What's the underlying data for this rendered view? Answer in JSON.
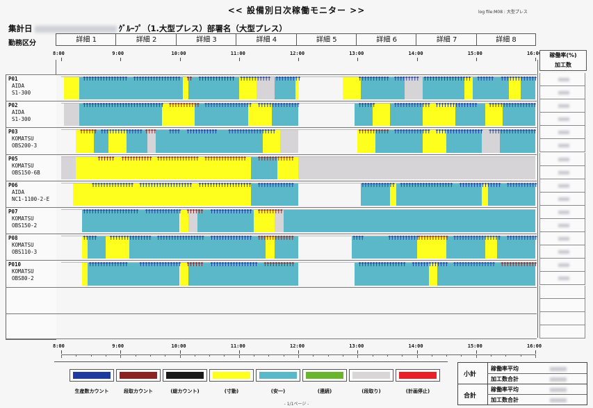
{
  "header": {
    "title": "<< 設備別日次稼働モニター >>",
    "log_file": "log file:M08 : 大型プレス",
    "aggregate_prefix": "集計日",
    "aggregate_suffix": "ｸﾞﾙｰﾌﾟ（1.大型プレス）部署名（大型プレス）",
    "shift_label": "勤務区分"
  },
  "details": [
    "詳細 1",
    "詳細 2",
    "詳細 3",
    "詳細 4",
    "詳細 5",
    "詳細 6",
    "詳細 7",
    "詳細 8"
  ],
  "time_ticks": [
    "8:00",
    "9:00",
    "10:00",
    "11:00",
    "12:00",
    "13:00",
    "14:00",
    "15:00",
    "16:00"
  ],
  "right_headers": {
    "rate": "稼働率(%)",
    "count": "加工数"
  },
  "machines": [
    {
      "id": "P01",
      "maker": "AIDA",
      "model": "S1-300"
    },
    {
      "id": "P02",
      "maker": "AIDA",
      "model": "S1-300"
    },
    {
      "id": "P03",
      "maker": "KOMATSU",
      "model": "OBS200-3"
    },
    {
      "id": "P05",
      "maker": "KOMATSU",
      "model": "OBS150-6B"
    },
    {
      "id": "P06",
      "maker": "AIDA",
      "model": "NC1-1100-2-E"
    },
    {
      "id": "P07",
      "maker": "KOMATSU",
      "model": "OBS150-2"
    },
    {
      "id": "P08",
      "maker": "KOMATSU",
      "model": "OBS110-3"
    },
    {
      "id": "P010",
      "maker": "KOMATSU",
      "model": "OBS80-2"
    }
  ],
  "legend": [
    {
      "label": "生産数カウント",
      "color": "#1f3a9e"
    },
    {
      "label": "段取カウント",
      "color": "#8b2323"
    },
    {
      "label": "(総カウント)",
      "color": "#1a1a1a"
    },
    {
      "label": "(寸動)",
      "color": "#ffff1e"
    },
    {
      "label": "(安一)",
      "color": "#5bb8c8"
    },
    {
      "label": "(連続)",
      "color": "#6ab42f"
    },
    {
      "label": "(段取り)",
      "color": "#d8d6d6"
    },
    {
      "label": "(計画停止)",
      "color": "#e8202a"
    }
  ],
  "totals": {
    "subtotal": "小計",
    "total": "合計",
    "avg_rate": "稼働率平均",
    "count_total": "加工数合計"
  },
  "footer": "- 1/1ページ -",
  "colors": {
    "yellow": "#ffff1e",
    "teal": "#5bb8c8",
    "gray": "#d6d4d6",
    "blue": "#1f3a9e",
    "red": "#8b2323"
  }
}
